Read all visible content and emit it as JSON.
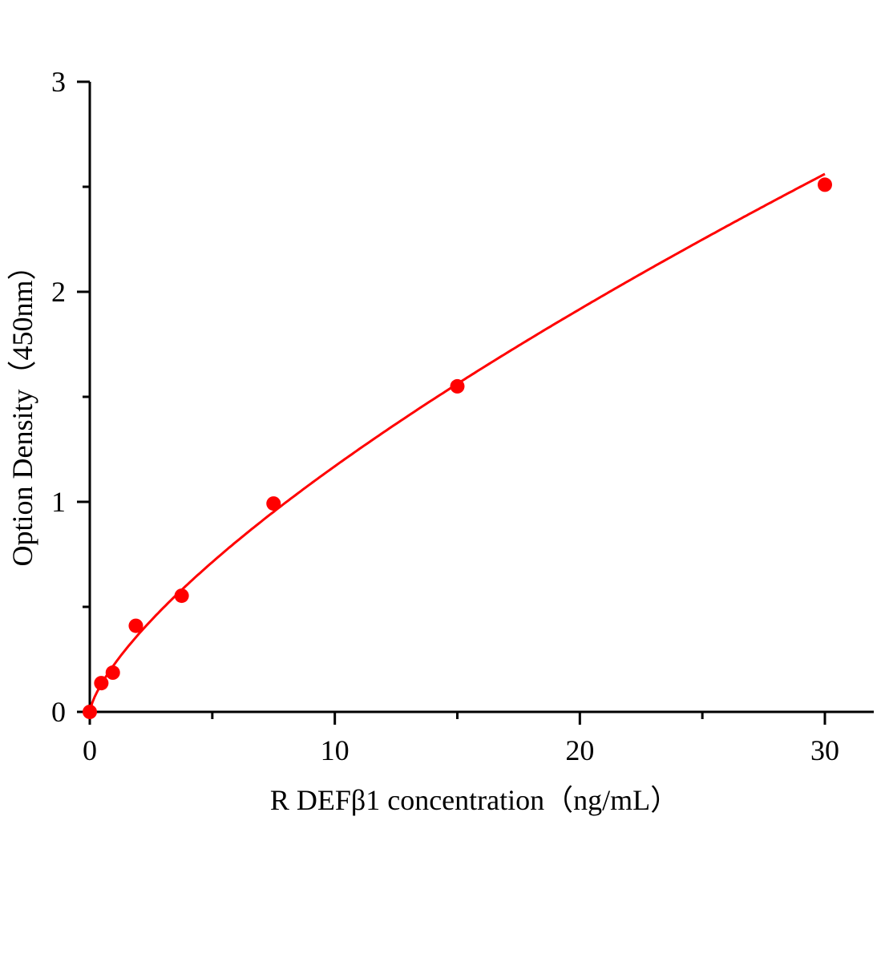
{
  "chart_data": {
    "type": "scatter",
    "title": "",
    "xlabel": "R DEFβ1 concentration（ng/mL）",
    "ylabel": "Option Density（450nm）",
    "xlim": [
      0,
      32
    ],
    "ylim": [
      0,
      3
    ],
    "x_ticks": [
      0,
      10,
      20,
      30
    ],
    "x_tick_labels": [
      "0",
      "10",
      "20",
      "30"
    ],
    "x_minor_ticks": [
      5,
      15,
      25
    ],
    "y_ticks": [
      0,
      1,
      2,
      3
    ],
    "y_tick_labels": [
      "0",
      "1",
      "2",
      "3"
    ],
    "y_minor_ticks": [
      0.5,
      1.5,
      2.5
    ],
    "grid": false,
    "legend": "none",
    "color": "#ff0000",
    "fit_line": "smooth curve",
    "series": [
      {
        "x": [
          0,
          0.47,
          0.94,
          1.88,
          3.75,
          7.5,
          15,
          30
        ],
        "y": [
          0,
          0.137,
          0.187,
          0.41,
          0.553,
          0.992,
          1.55,
          2.51
        ]
      }
    ]
  }
}
